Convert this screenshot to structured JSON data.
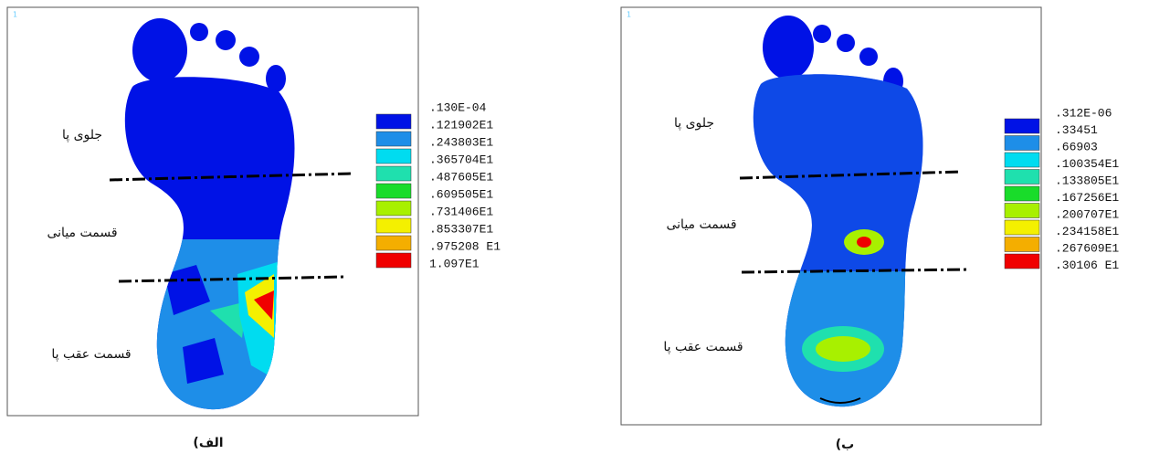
{
  "panels": [
    {
      "corner_mark": "1",
      "regions": [
        "جلوی پا",
        "قسمت میانی",
        "قسمت عقب پا"
      ],
      "legend": {
        "colors": [
          "#0012e6",
          "#1e8ee8",
          "#00dcf0",
          "#1fe0ae",
          "#19dc2a",
          "#a8f000",
          "#f4f000",
          "#f4ae00",
          "#f00000"
        ],
        "labels": [
          ".130E-04",
          ".121902E1",
          ".243803E1",
          ".365704E1",
          ".487605E1",
          ".609505E1",
          ".731406E1",
          ".853307E1",
          ".975208 E1",
          "1.097E1"
        ]
      },
      "caption": "الف)"
    },
    {
      "corner_mark": "1",
      "regions": [
        "جلوی پا",
        "قسمت میانی",
        "قسمت عقب پا"
      ],
      "legend": {
        "colors": [
          "#0012e6",
          "#1e8ee8",
          "#00dcf0",
          "#1fe0ae",
          "#19dc2a",
          "#a8f000",
          "#f4f000",
          "#f4ae00",
          "#f00000"
        ],
        "labels": [
          ".312E-06",
          ".33451",
          ".66903",
          ".100354E1",
          ".133805E1",
          ".167256E1",
          ".200707E1",
          ".234158E1",
          ".267609E1",
          ".30106 E1"
        ]
      },
      "caption": "ب)"
    }
  ]
}
